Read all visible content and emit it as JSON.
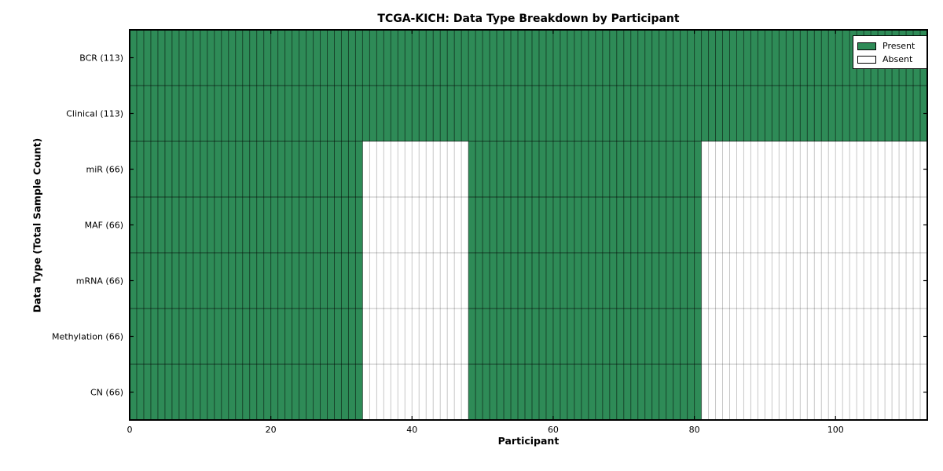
{
  "figure": {
    "title": "TCGA-KICH: Data Type Breakdown by Participant",
    "xlabel": "Participant",
    "ylabel": "Data Type (Total Sample Count)"
  },
  "legend": {
    "items": [
      {
        "label": "Present",
        "color": "#2e8b57"
      },
      {
        "label": "Absent",
        "color": "#ffffff"
      }
    ]
  },
  "chart_data": {
    "type": "heatmap",
    "title": "TCGA-KICH: Data Type Breakdown by Participant",
    "xlabel": "Participant",
    "ylabel": "Data Type (Total Sample Count)",
    "n_participants": 113,
    "x_ticks": [
      0,
      20,
      40,
      60,
      80,
      100
    ],
    "x_range": [
      0,
      113
    ],
    "grid": true,
    "legend_position": "upper right",
    "colors": {
      "present": "#2e8b57",
      "absent": "#ffffff",
      "border": "#000000"
    },
    "rows": [
      {
        "label": "BCR (113)",
        "data_type": "BCR",
        "total_samples": 113,
        "present_segments": [
          [
            0,
            113
          ]
        ]
      },
      {
        "label": "Clinical (113)",
        "data_type": "Clinical",
        "total_samples": 113,
        "present_segments": [
          [
            0,
            113
          ]
        ]
      },
      {
        "label": "miR (66)",
        "data_type": "miR",
        "total_samples": 66,
        "present_segments": [
          [
            0,
            33
          ],
          [
            48,
            81
          ]
        ]
      },
      {
        "label": "MAF (66)",
        "data_type": "MAF",
        "total_samples": 66,
        "present_segments": [
          [
            0,
            33
          ],
          [
            48,
            81
          ]
        ]
      },
      {
        "label": "mRNA (66)",
        "data_type": "mRNA",
        "total_samples": 66,
        "present_segments": [
          [
            0,
            33
          ],
          [
            48,
            81
          ]
        ]
      },
      {
        "label": "Methylation (66)",
        "data_type": "Methylation",
        "total_samples": 66,
        "present_segments": [
          [
            0,
            33
          ],
          [
            48,
            81
          ]
        ]
      },
      {
        "label": "CN (66)",
        "data_type": "CN",
        "total_samples": 66,
        "present_segments": [
          [
            0,
            33
          ],
          [
            48,
            81
          ]
        ]
      }
    ]
  }
}
